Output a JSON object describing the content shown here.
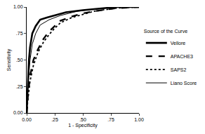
{
  "chart_data": {
    "type": "line",
    "x_label": "1 - Specificity",
    "y_label": "Sensitivity",
    "legend_title": "Source of the Curve",
    "legend": "right",
    "grid": false,
    "xlim": [
      0,
      1
    ],
    "ylim": [
      0,
      1
    ],
    "xticks": [
      {
        "value": 0,
        "label": "0.00"
      },
      {
        "value": 0.25,
        "label": ".25"
      },
      {
        "value": 0.5,
        "label": ".50"
      },
      {
        "value": 0.75,
        "label": ".75"
      },
      {
        "value": 1,
        "label": "1.00"
      }
    ],
    "yticks": [
      {
        "value": 0,
        "label": "0.00"
      },
      {
        "value": 0.25,
        "label": ".25"
      },
      {
        "value": 0.5,
        "label": ".50"
      },
      {
        "value": 0.75,
        "label": ".75"
      },
      {
        "value": 1,
        "label": "1.00"
      }
    ],
    "series": [
      {
        "name": "Vellore",
        "color": "#000000",
        "line_style": "solid",
        "x": [
          0,
          0.01,
          0.02,
          0.03,
          0.05,
          0.08,
          0.12,
          0.18,
          0.25,
          0.35,
          0.5,
          0.6,
          0.8,
          1
        ],
        "values": [
          0,
          0.3,
          0.5,
          0.62,
          0.75,
          0.82,
          0.88,
          0.9,
          0.92,
          0.95,
          0.97,
          0.98,
          1,
          1
        ]
      },
      {
        "name": "APACHE3",
        "color": "#000000",
        "line_style": "dash",
        "x": [
          0,
          0.01,
          0.03,
          0.06,
          0.1,
          0.15,
          0.2,
          0.25,
          0.3,
          0.4,
          0.5,
          0.6,
          0.8,
          1
        ],
        "values": [
          0,
          0.15,
          0.35,
          0.5,
          0.6,
          0.7,
          0.77,
          0.82,
          0.87,
          0.91,
          0.94,
          0.96,
          0.99,
          1
        ]
      },
      {
        "name": "SAPS2",
        "color": "#000000",
        "line_style": "dot",
        "x": [
          0,
          0.01,
          0.03,
          0.06,
          0.1,
          0.15,
          0.2,
          0.25,
          0.3,
          0.4,
          0.5,
          0.6,
          0.8,
          1
        ],
        "values": [
          0,
          0.12,
          0.3,
          0.45,
          0.57,
          0.67,
          0.74,
          0.8,
          0.85,
          0.9,
          0.93,
          0.96,
          0.99,
          1
        ]
      },
      {
        "name": "Liano Score",
        "color": "#000000",
        "line_style": "solid",
        "x": [
          0,
          0.01,
          0.03,
          0.05,
          0.08,
          0.12,
          0.2,
          0.3,
          0.45,
          0.6,
          0.8,
          1
        ],
        "values": [
          0,
          0.25,
          0.5,
          0.65,
          0.75,
          0.83,
          0.88,
          0.92,
          0.96,
          0.98,
          1,
          1
        ]
      }
    ]
  }
}
